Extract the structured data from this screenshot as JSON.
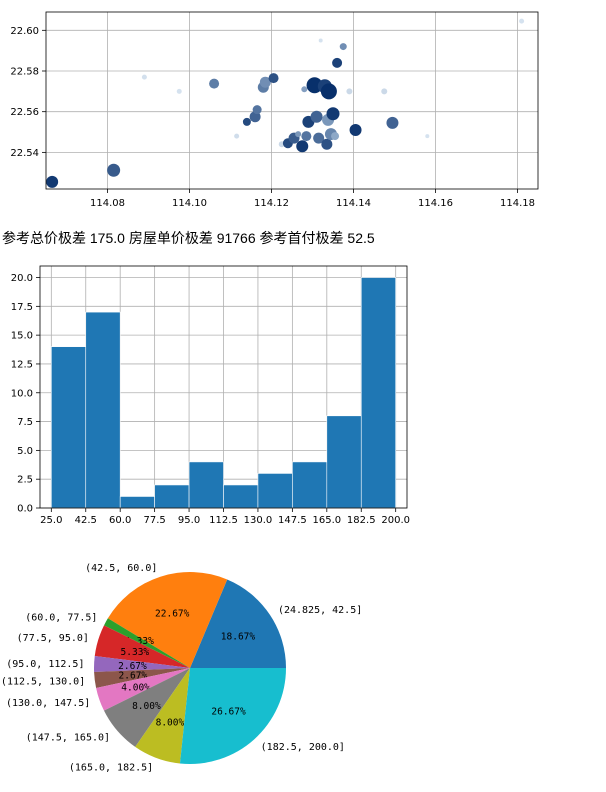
{
  "stats": {
    "text": "参考总价极差 175.0 房屋单价极差 91766 参考首付极差 52.5"
  },
  "colors": {
    "scatter_light": "#c6dbef",
    "scatter_dark": "#08306b",
    "hist_bar": "#1f77b4"
  },
  "chart_data": [
    {
      "type": "scatter",
      "xlim": [
        114.065,
        114.185
      ],
      "ylim": [
        22.522,
        22.609
      ],
      "xticks": [
        "114.08",
        "114.10",
        "114.12",
        "114.14",
        "114.16",
        "114.18"
      ],
      "xtick_values": [
        114.08,
        114.1,
        114.12,
        114.14,
        114.16,
        114.18
      ],
      "yticks": [
        "22.54",
        "22.56",
        "22.58",
        "22.60"
      ],
      "ytick_values": [
        22.54,
        22.56,
        22.58,
        22.6
      ],
      "grid": true,
      "points": [
        {
          "x": 114.0665,
          "y": 22.5255,
          "v": 0.95,
          "s": 6
        },
        {
          "x": 114.0815,
          "y": 22.5312,
          "v": 0.75,
          "s": 6.5
        },
        {
          "x": 114.089,
          "y": 22.577,
          "v": 0.12,
          "s": 2.5
        },
        {
          "x": 114.0975,
          "y": 22.57,
          "v": 0.1,
          "s": 2.5
        },
        {
          "x": 114.106,
          "y": 22.5738,
          "v": 0.55,
          "s": 5
        },
        {
          "x": 114.1115,
          "y": 22.548,
          "v": 0.15,
          "s": 2.5
        },
        {
          "x": 114.114,
          "y": 22.555,
          "v": 0.85,
          "s": 4
        },
        {
          "x": 114.116,
          "y": 22.5575,
          "v": 0.7,
          "s": 5.5
        },
        {
          "x": 114.1165,
          "y": 22.561,
          "v": 0.6,
          "s": 4.5
        },
        {
          "x": 114.118,
          "y": 22.572,
          "v": 0.55,
          "s": 5.5
        },
        {
          "x": 114.1185,
          "y": 22.5745,
          "v": 0.45,
          "s": 5.5
        },
        {
          "x": 114.1205,
          "y": 22.5765,
          "v": 0.8,
          "s": 5
        },
        {
          "x": 114.1225,
          "y": 22.544,
          "v": 0.2,
          "s": 3
        },
        {
          "x": 114.124,
          "y": 22.5445,
          "v": 0.85,
          "s": 5
        },
        {
          "x": 114.1255,
          "y": 22.547,
          "v": 0.75,
          "s": 5.5
        },
        {
          "x": 114.1265,
          "y": 22.549,
          "v": 0.4,
          "s": 3
        },
        {
          "x": 114.1275,
          "y": 22.543,
          "v": 0.95,
          "s": 6
        },
        {
          "x": 114.128,
          "y": 22.571,
          "v": 0.35,
          "s": 3
        },
        {
          "x": 114.1285,
          "y": 22.548,
          "v": 0.6,
          "s": 5
        },
        {
          "x": 114.129,
          "y": 22.555,
          "v": 0.9,
          "s": 6
        },
        {
          "x": 114.1305,
          "y": 22.573,
          "v": 1.0,
          "s": 8
        },
        {
          "x": 114.131,
          "y": 22.5575,
          "v": 0.7,
          "s": 6
        },
        {
          "x": 114.1315,
          "y": 22.547,
          "v": 0.65,
          "s": 5.5
        },
        {
          "x": 114.132,
          "y": 22.595,
          "v": 0.1,
          "s": 2
        },
        {
          "x": 114.133,
          "y": 22.5725,
          "v": 0.9,
          "s": 7
        },
        {
          "x": 114.1335,
          "y": 22.544,
          "v": 0.8,
          "s": 5.5
        },
        {
          "x": 114.1338,
          "y": 22.556,
          "v": 0.4,
          "s": 6
        },
        {
          "x": 114.134,
          "y": 22.57,
          "v": 1.0,
          "s": 8
        },
        {
          "x": 114.1345,
          "y": 22.549,
          "v": 0.5,
          "s": 6
        },
        {
          "x": 114.135,
          "y": 22.559,
          "v": 0.95,
          "s": 6.5
        },
        {
          "x": 114.1355,
          "y": 22.548,
          "v": 0.3,
          "s": 4
        },
        {
          "x": 114.136,
          "y": 22.584,
          "v": 0.9,
          "s": 5
        },
        {
          "x": 114.1375,
          "y": 22.592,
          "v": 0.45,
          "s": 3.5
        },
        {
          "x": 114.139,
          "y": 22.57,
          "v": 0.2,
          "s": 3
        },
        {
          "x": 114.1405,
          "y": 22.551,
          "v": 0.95,
          "s": 6
        },
        {
          "x": 114.1475,
          "y": 22.57,
          "v": 0.2,
          "s": 3
        },
        {
          "x": 114.1495,
          "y": 22.5545,
          "v": 0.7,
          "s": 6
        },
        {
          "x": 114.158,
          "y": 22.548,
          "v": 0.1,
          "s": 2
        },
        {
          "x": 114.181,
          "y": 22.6045,
          "v": 0.1,
          "s": 2.5
        }
      ]
    },
    {
      "type": "bar",
      "xlim": [
        19.25,
        205.75
      ],
      "ylim": [
        0,
        21
      ],
      "xticks": [
        "25.0",
        "42.5",
        "60.0",
        "77.5",
        "95.0",
        "112.5",
        "130.0",
        "147.5",
        "165.0",
        "182.5",
        "200.0"
      ],
      "xtick_values": [
        25,
        42.5,
        60,
        77.5,
        95,
        112.5,
        130,
        147.5,
        165,
        182.5,
        200
      ],
      "yticks": [
        "0.0",
        "2.5",
        "5.0",
        "7.5",
        "10.0",
        "12.5",
        "15.0",
        "17.5",
        "20.0"
      ],
      "ytick_values": [
        0,
        2.5,
        5,
        7.5,
        10,
        12.5,
        15,
        17.5,
        20
      ],
      "grid": true,
      "bin_edges": [
        25,
        42.5,
        60,
        77.5,
        95,
        112.5,
        130,
        147.5,
        165,
        182.5,
        200
      ],
      "values": [
        14,
        17,
        1,
        2,
        4,
        2,
        3,
        4,
        8,
        20
      ]
    },
    {
      "type": "pie",
      "start_angle": 0,
      "direction": "counterclockwise",
      "slices": [
        {
          "label": "(24.825, 42.5]",
          "pct": "18.67%",
          "value": 14,
          "color": "#1f77b4"
        },
        {
          "label": "(42.5, 60.0]",
          "pct": "22.67%",
          "value": 17,
          "color": "#ff7f0e"
        },
        {
          "label": "(60.0, 77.5]",
          "pct": "1.33%",
          "value": 1,
          "color": "#2ca02c"
        },
        {
          "label": "(77.5, 95.0]",
          "pct": "5.33%",
          "value": 4,
          "color": "#d62728"
        },
        {
          "label": "(95.0, 112.5]",
          "pct": "2.67%",
          "value": 2,
          "color": "#9467bd"
        },
        {
          "label": "(112.5, 130.0]",
          "pct": "2.67%",
          "value": 2,
          "color": "#8c564b"
        },
        {
          "label": "(130.0, 147.5]",
          "pct": "4.00%",
          "value": 3,
          "color": "#e377c2"
        },
        {
          "label": "(147.5, 165.0]",
          "pct": "8.00%",
          "value": 6,
          "color": "#7f7f7f"
        },
        {
          "label": "(165.0, 182.5]",
          "pct": "8.00%",
          "value": 6,
          "color": "#bcbd22"
        },
        {
          "label": "(182.5, 200.0]",
          "pct": "26.67%",
          "value": 20,
          "color": "#17becf"
        }
      ]
    }
  ]
}
